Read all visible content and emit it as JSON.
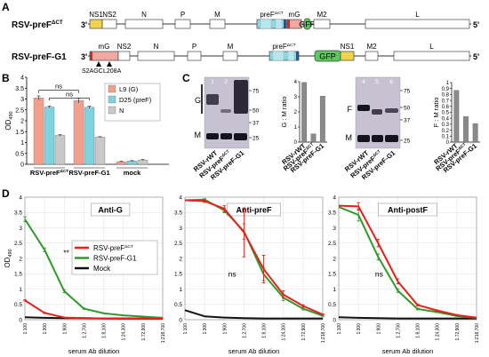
{
  "panels": {
    "a": "A",
    "b": "B",
    "c": "C",
    "d": "D"
  },
  "genome": {
    "rows": [
      {
        "name_prefix": "RSV-preF",
        "name_sup": "ΔCT",
        "end3": "3'",
        "end5": "5'",
        "genes": [
          {
            "label": "NS1",
            "color": "#f2d44a"
          },
          {
            "label": "NS2",
            "color": "#ffffff"
          },
          {
            "label": "N",
            "color": "#ffffff"
          },
          {
            "label": "P",
            "color": "#ffffff"
          },
          {
            "label": "M",
            "color": "#ffffff"
          },
          {
            "label": "preF",
            "sup": "ΔCT",
            "color": "#8fd6e0"
          },
          {
            "label": "mG",
            "color": "#f2a7a0"
          },
          {
            "label": "GFP",
            "color": "#5cc95c"
          },
          {
            "label": "M2",
            "color": "#ffffff"
          },
          {
            "label": "L",
            "color": "#ffffff"
          }
        ]
      },
      {
        "name_prefix": "RSV-preF-G1",
        "name_sup": "",
        "end3": "3'",
        "end5": "5'",
        "genes": [
          {
            "label": "mG",
            "color": "#f2a7a0"
          },
          {
            "label": "NS2",
            "color": "#ffffff"
          },
          {
            "label": "N",
            "color": "#ffffff"
          },
          {
            "label": "P",
            "color": "#ffffff"
          },
          {
            "label": "M",
            "color": "#ffffff"
          },
          {
            "label": "preF",
            "sup": "ΔCT",
            "color": "#8fd6e0"
          },
          {
            "label": "GFP",
            "color": "#5cc95c"
          },
          {
            "label": "NS1",
            "color": "#f2d44a"
          },
          {
            "label": "M2",
            "color": "#ffffff"
          },
          {
            "label": "L",
            "color": "#ffffff"
          }
        ],
        "mutations": [
          "S2AGC",
          "L208A"
        ]
      }
    ]
  },
  "panel_b": {
    "ylabel": "OD",
    "ylabel_sub": "490",
    "chart_data": {
      "type": "bar",
      "categories": [
        "RSV-preF",
        "RSV-preF-G1",
        "mock"
      ],
      "category_sup": [
        "ΔCT",
        "",
        ""
      ],
      "series": [
        {
          "name": "L9 (G)",
          "values": [
            3.05,
            2.93,
            0.12
          ],
          "errors": [
            0.09,
            0.12,
            0.02
          ],
          "color": "#f2a08c"
        },
        {
          "name": "D25 (preF)",
          "values": [
            2.63,
            2.62,
            0.15
          ],
          "errors": [
            0.04,
            0.05,
            0.02
          ],
          "color": "#7fd3e0"
        },
        {
          "name": "N",
          "values": [
            1.33,
            1.25,
            0.2
          ],
          "errors": [
            0.03,
            0.02,
            0.02
          ],
          "color": "#c8c8c8"
        }
      ],
      "ylim": [
        0,
        4
      ],
      "yticks": [
        0,
        0.5,
        1,
        1.5,
        2,
        2.5,
        3,
        3.5,
        4
      ],
      "ytick_labels": [
        "0",
        "0.5",
        "1",
        "1.5",
        "2",
        "2.5",
        "3",
        "3.5",
        "4"
      ],
      "significance": [
        "ns",
        "ns"
      ],
      "legend_position": "top-right"
    }
  },
  "panel_c": {
    "blot1": {
      "lane_numbers": [
        "1",
        "2",
        "3"
      ],
      "band_labels": [
        "G",
        "M"
      ],
      "mw_markers": [
        "75",
        "50",
        "37",
        "25"
      ]
    },
    "blot2": {
      "lane_numbers": [
        "4",
        "5",
        "6"
      ],
      "band_labels": [
        "F",
        "M"
      ],
      "mw_markers": [
        "75",
        "50",
        "37",
        "25"
      ]
    },
    "lane_labels": [
      "RSV-rWT",
      "RSV-preF",
      "RSV-preF-G1"
    ],
    "lane_label_sups": [
      "",
      "ΔCT",
      ""
    ],
    "chart_data": [
      {
        "type": "bar",
        "ylabel": "G : M ratio",
        "categories": [
          "RSV-rWT",
          "RSV-preF",
          "RSV-preF-G1"
        ],
        "category_sups": [
          "",
          "ΔCT",
          ""
        ],
        "values": [
          3.95,
          0.55,
          3.05
        ],
        "ylim": [
          0,
          4
        ],
        "yticks": [
          0,
          1,
          2,
          3,
          4
        ],
        "ytick_labels": [
          "0",
          "1",
          "2",
          "3",
          "4"
        ]
      },
      {
        "type": "bar",
        "ylabel": "F : M ratio",
        "categories": [
          "RSV-rWT",
          "RSV-preF",
          "RSV-preF-G1"
        ],
        "category_sups": [
          "",
          "ΔCT",
          ""
        ],
        "values": [
          0.87,
          0.43,
          0.31
        ],
        "ylim": [
          0,
          1
        ],
        "yticks": [
          0,
          0.1,
          0.2,
          0.3,
          0.4,
          0.5,
          0.6,
          0.7,
          0.8,
          0.9,
          1
        ],
        "ytick_labels": [
          "0",
          "0.1",
          "0.2",
          "0.3",
          "0.4",
          "0.5",
          "0.6",
          "0.7",
          "0.8",
          "0.9",
          "1"
        ]
      }
    ]
  },
  "panel_d": {
    "ylabel": "OD",
    "ylabel_sub": "490",
    "xlabel": "serum Ab dilution",
    "legend": [
      {
        "name": "RSV-preF",
        "sup": "ΔCT",
        "color": "#e8201c"
      },
      {
        "name": "RSV-preF-G1",
        "sup": "",
        "color": "#2f9a2a"
      },
      {
        "name": "Mock",
        "sup": "",
        "color": "#111111"
      }
    ],
    "chart_data": [
      {
        "type": "line",
        "title": "Anti-G",
        "x": [
          "1:100",
          "1:300",
          "1:900",
          "1:2,700",
          "1:8,100",
          "1:24,300",
          "1:72,900",
          "1:218,700"
        ],
        "ylim": [
          0,
          4
        ],
        "yticks": [
          0,
          0.5,
          1,
          1.5,
          2,
          2.5,
          3,
          3.5,
          4
        ],
        "ytick_labels": [
          "0",
          "0.5",
          "1",
          "1.5",
          "2",
          "2.5",
          "3",
          "3.5",
          "4"
        ],
        "annotation": "**",
        "series": [
          {
            "name": "RSV-preF",
            "values": [
              0.63,
              0.22,
              0.07,
              0.05,
              0.04,
              0.03,
              0.03,
              0.03
            ],
            "errors": [
              0.02,
              0.02,
              0,
              0,
              0,
              0,
              0,
              0
            ],
            "color": "#e8201c"
          },
          {
            "name": "RSV-preF-G1",
            "values": [
              3.28,
              2.28,
              0.93,
              0.36,
              0.21,
              0.14,
              0.1,
              0.06
            ],
            "errors": [
              0.08,
              0.06,
              0.05,
              0.02,
              0.01,
              0.01,
              0,
              0
            ],
            "color": "#2f9a2a"
          },
          {
            "name": "Mock",
            "values": [
              0.08,
              0.06,
              0.05,
              0.05,
              0.04,
              0.04,
              0.04,
              0.04
            ],
            "errors": [
              0,
              0,
              0,
              0,
              0,
              0,
              0,
              0
            ],
            "color": "#111111"
          }
        ]
      },
      {
        "type": "line",
        "title": "Anti-preF",
        "x": [
          "1:100",
          "1:300",
          "1:900",
          "1:2,700",
          "1:8,100",
          "1:24,300",
          "1:72,900",
          "1:218,700"
        ],
        "ylim": [
          0,
          4
        ],
        "yticks": [
          0,
          0.5,
          1,
          1.5,
          2,
          2.5,
          3,
          3.5,
          4
        ],
        "ytick_labels": [
          "0",
          "0.5",
          "1",
          "1.5",
          "2",
          "2.5",
          "3",
          "3.5",
          "4"
        ],
        "annotation": "ns",
        "series": [
          {
            "name": "RSV-preF",
            "values": [
              3.9,
              3.87,
              3.62,
              2.85,
              1.65,
              0.82,
              0.45,
              0.17
            ],
            "errors": [
              0,
              0.04,
              0.1,
              0.8,
              0.45,
              0.12,
              0.04,
              0.02
            ],
            "color": "#e8201c"
          },
          {
            "name": "RSV-preF-G1",
            "values": [
              3.9,
              3.92,
              3.57,
              2.88,
              1.48,
              0.72,
              0.36,
              0.13
            ],
            "errors": [
              0,
              0.03,
              0.08,
              0.25,
              0.2,
              0.1,
              0.04,
              0.02
            ],
            "color": "#2f9a2a"
          },
          {
            "name": "Mock",
            "values": [
              0.31,
              0.11,
              0.07,
              0.05,
              0.04,
              0.04,
              0.04,
              0.04
            ],
            "errors": [
              0,
              0,
              0,
              0,
              0,
              0,
              0,
              0
            ],
            "color": "#111111"
          }
        ]
      },
      {
        "type": "line",
        "title": "Anti-postF",
        "x": [
          "1:100",
          "1:300",
          "1:900",
          "1:2,700",
          "1:8,100",
          "1:24,300",
          "1:72,900",
          "1:218,700"
        ],
        "ylim": [
          0,
          4
        ],
        "yticks": [
          0,
          0.5,
          1,
          1.5,
          2,
          2.5,
          3,
          3.5,
          4
        ],
        "ytick_labels": [
          "0",
          "0.5",
          "1",
          "1.5",
          "2",
          "2.5",
          "3",
          "3.5",
          "4"
        ],
        "annotation": "ns",
        "series": [
          {
            "name": "RSV-preF",
            "values": [
              3.72,
              3.7,
              2.5,
              1.25,
              0.48,
              0.3,
              0.15,
              0.07
            ],
            "errors": [
              0,
              0.12,
              0.12,
              0.08,
              0.03,
              0.02,
              0.02,
              0
            ],
            "color": "#e8201c"
          },
          {
            "name": "RSV-preF-G1",
            "values": [
              3.68,
              3.42,
              2.05,
              0.95,
              0.35,
              0.25,
              0.12,
              0.06
            ],
            "errors": [
              0,
              0.2,
              0.1,
              0.06,
              0.03,
              0.02,
              0.01,
              0
            ],
            "color": "#2f9a2a"
          },
          {
            "name": "Mock",
            "values": [
              0.08,
              0.06,
              0.05,
              0.04,
              0.04,
              0.04,
              0.04,
              0.04
            ],
            "errors": [
              0,
              0,
              0,
              0,
              0,
              0,
              0,
              0
            ],
            "color": "#111111"
          }
        ]
      }
    ]
  }
}
